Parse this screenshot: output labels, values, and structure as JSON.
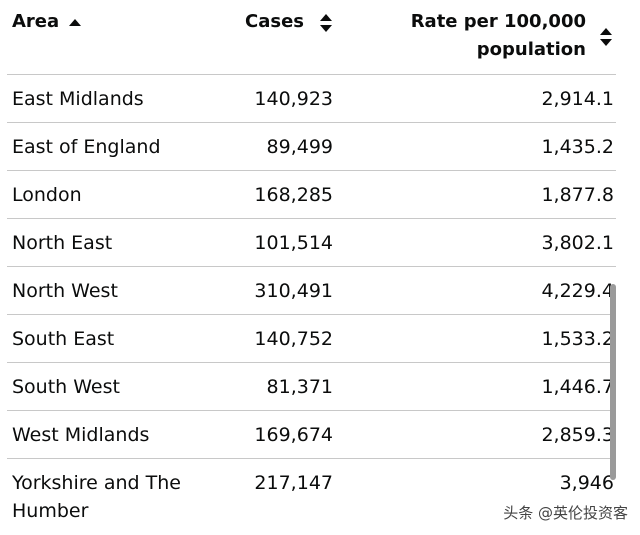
{
  "header": {
    "area": "Area",
    "cases": "Cases",
    "rate": "Rate per 100,000 population"
  },
  "table": {
    "rows": [
      [
        "East Midlands",
        "140,923",
        "2,914.1"
      ],
      [
        "East of England",
        "89,499",
        "1,435.2"
      ],
      [
        "London",
        "168,285",
        "1,877.8"
      ],
      [
        "North East",
        "101,514",
        "3,802.1"
      ],
      [
        "North West",
        "310,491",
        "4,229.4"
      ],
      [
        "South East",
        "140,752",
        "1,533.2"
      ],
      [
        "South West",
        "81,371",
        "1,446.7"
      ],
      [
        "West Midlands",
        "169,674",
        "2,859.3"
      ],
      [
        "Yorkshire and The Humber",
        "217,147",
        "3,946"
      ]
    ]
  },
  "watermark": "头条 @英伦投资客"
}
